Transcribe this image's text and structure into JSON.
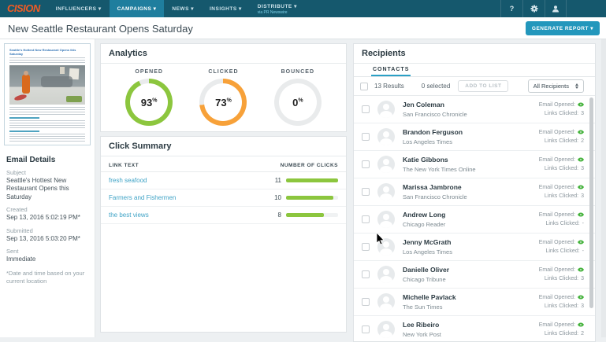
{
  "nav": {
    "logo": "CISION",
    "items": [
      {
        "label": "INFLUENCERS",
        "active": false,
        "sub": ""
      },
      {
        "label": "CAMPAIGNS",
        "active": true,
        "sub": ""
      },
      {
        "label": "NEWS",
        "active": false,
        "sub": ""
      },
      {
        "label": "INSIGHTS",
        "active": false,
        "sub": ""
      },
      {
        "label": "DISTRIBUTE",
        "active": false,
        "sub": "via PR Newswire"
      }
    ],
    "icons": [
      "help-icon",
      "gear-icon",
      "user-icon"
    ],
    "help_glyph": "?"
  },
  "header": {
    "title": "New Seattle Restaurant Opens Saturday",
    "generate_report_label": "GENERATE REPORT",
    "caret": "▾"
  },
  "sidebar": {
    "preview_headline": "Seattle's Hottest New Restaurant Opens this Saturday",
    "email_details_title": "Email Details",
    "fields": [
      {
        "label": "Subject",
        "value": "Seattle's Hottest New Restaurant Opens this Saturday"
      },
      {
        "label": "Created",
        "value": "Sep 13, 2016 5:02:19 PM*"
      },
      {
        "label": "Submitted",
        "value": "Sep 13, 2016 5:03:20 PM*"
      },
      {
        "label": "Sent",
        "value": "Immediate"
      }
    ],
    "footnote": "*Date and time based on your current location"
  },
  "analytics": {
    "title": "Analytics",
    "donuts": [
      {
        "label": "OPENED",
        "value": 93,
        "color": "#8cc63e"
      },
      {
        "label": "CLICKED",
        "value": 73,
        "color": "#f7a139"
      },
      {
        "label": "BOUNCED",
        "value": 0,
        "color": "#e9ebec"
      }
    ],
    "ring_track_color": "#e9ebec"
  },
  "click_summary": {
    "title": "Click Summary",
    "col_link": "LINK TEXT",
    "col_clicks": "NUMBER OF CLICKS",
    "rows": [
      {
        "link": "fresh seafood",
        "clicks": 11,
        "pct": 100
      },
      {
        "link": "Farmers and Fishermen",
        "clicks": 10,
        "pct": 91
      },
      {
        "link": "the best views",
        "clicks": 8,
        "pct": 73
      }
    ],
    "bar_color": "#8cc63e"
  },
  "recipients": {
    "title": "Recipients",
    "tab": "CONTACTS",
    "results": "13 Results",
    "selected": "0 selected",
    "add_to_list": "ADD TO LIST",
    "filter": "All Recipients",
    "email_opened_label": "Email Opened:",
    "links_clicked_label": "Links Clicked:",
    "contacts": [
      {
        "name": "Jen Coleman",
        "outlet": "San Francisco Chronicle",
        "links_clicked": "3"
      },
      {
        "name": "Brandon Ferguson",
        "outlet": "Los Angeles Times",
        "links_clicked": "2"
      },
      {
        "name": "Katie Gibbons",
        "outlet": "The New York Times Online",
        "links_clicked": "3"
      },
      {
        "name": "Marissa Jambrone",
        "outlet": "San Francisco Chronicle",
        "links_clicked": "3"
      },
      {
        "name": "Andrew Long",
        "outlet": "Chicago Reader",
        "links_clicked": "-"
      },
      {
        "name": "Jenny McGrath",
        "outlet": "Los Angeles Times",
        "links_clicked": "-"
      },
      {
        "name": "Danielle Oliver",
        "outlet": "Chicago Tribune",
        "links_clicked": "3"
      },
      {
        "name": "Michelle Pavlack",
        "outlet": "The Sun Times",
        "links_clicked": "3"
      },
      {
        "name": "Lee Ribeiro",
        "outlet": "New York Post",
        "links_clicked": "2"
      }
    ]
  },
  "colors": {
    "nav_bg": "#15586d",
    "nav_active": "#1f7e9e",
    "logo_orange": "#f05b24",
    "button_teal": "#2397bc",
    "opened_green": "#8cc63e",
    "clicked_orange": "#f7a139",
    "link_blue": "#3fa3c6",
    "eye_green": "#46b43d"
  },
  "chart_data": [
    {
      "type": "pie",
      "variant": "donut-gauge",
      "title": "Analytics",
      "series": [
        {
          "name": "OPENED",
          "value_pct": 93
        },
        {
          "name": "CLICKED",
          "value_pct": 73
        },
        {
          "name": "BOUNCED",
          "value_pct": 0
        }
      ]
    },
    {
      "type": "bar",
      "title": "Click Summary",
      "categories": [
        "fresh seafood",
        "Farmers and Fishermen",
        "the best views"
      ],
      "values": [
        11,
        10,
        8
      ],
      "xlabel": "LINK TEXT",
      "ylabel": "NUMBER OF CLICKS",
      "ylim": [
        0,
        11
      ]
    }
  ]
}
